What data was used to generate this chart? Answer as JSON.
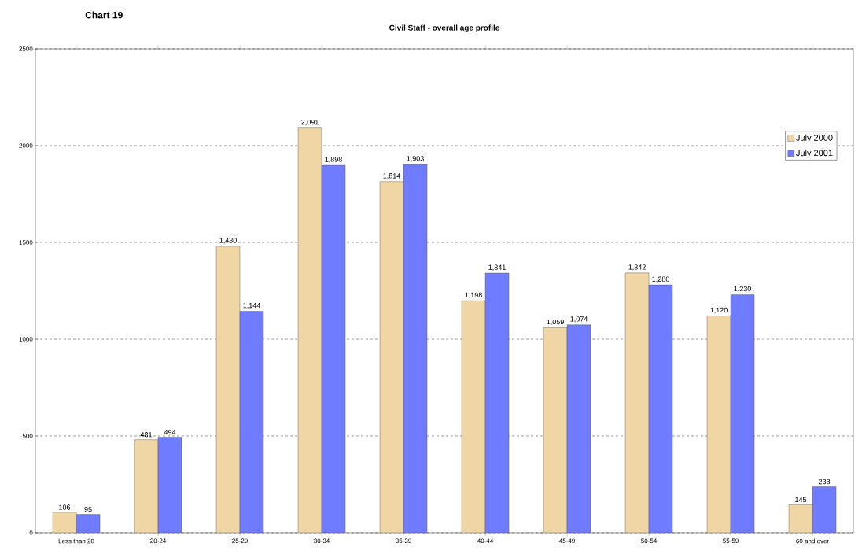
{
  "chart_data": {
    "type": "bar",
    "title": "Civil Staff - overall age profile",
    "annotations": [
      "Chart 19"
    ],
    "categories": [
      "Less than 20",
      "20-24",
      "25-29",
      "30-34",
      "35-39",
      "40-44",
      "45-49",
      "50-54",
      "55-59",
      "60 and over"
    ],
    "series": [
      {
        "name": "July 2000",
        "color": "#f0d6a4",
        "values": [
          106,
          481,
          1480,
          2091,
          1814,
          1198,
          1059,
          1342,
          1120,
          145
        ],
        "value_labels": [
          "106",
          "481",
          "1,480",
          "2,091",
          "1,814",
          "1,198",
          "1,059",
          "1,342",
          "1,120",
          "145"
        ]
      },
      {
        "name": "July 2001",
        "color": "#6f7cff",
        "values": [
          95,
          494,
          1144,
          1898,
          1903,
          1341,
          1074,
          1280,
          1230,
          238
        ],
        "value_labels": [
          "95",
          "494",
          "1,144",
          "1,898",
          "1,903",
          "1,341",
          "1,074",
          "1,280",
          "1,230",
          "238"
        ]
      }
    ],
    "ylim": [
      0,
      2500
    ],
    "yticks": [
      0,
      500,
      1000,
      1500,
      2000,
      2500
    ],
    "grid": "y",
    "legend": "top right"
  }
}
